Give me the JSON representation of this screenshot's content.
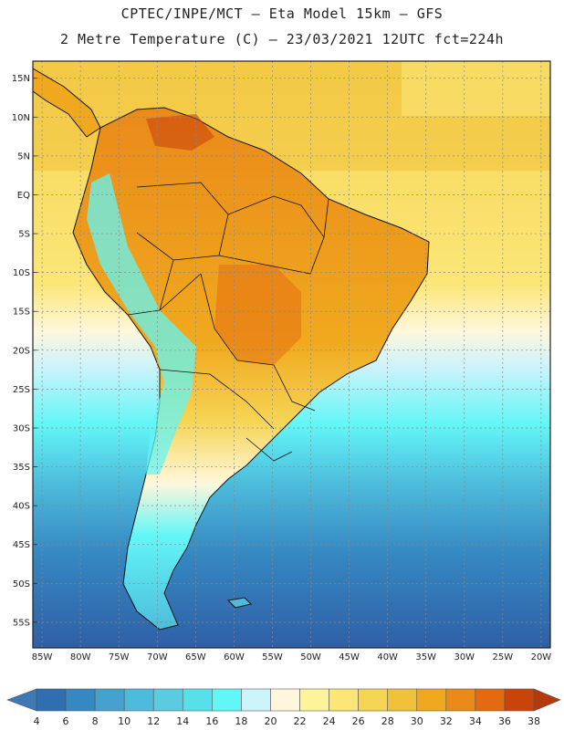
{
  "title_line1": "CPTEC/INPE/MCT –  Eta Model 15km – GFS",
  "title_line2": "2 Metre Temperature (C) – 23/03/2021 12UTC fct=224h",
  "lat_labels": [
    "15N",
    "10N",
    "5N",
    "EQ",
    "5S",
    "10S",
    "15S",
    "20S",
    "25S",
    "30S",
    "35S",
    "40S",
    "45S",
    "50S",
    "55S"
  ],
  "lon_labels": [
    "85W",
    "80W",
    "75W",
    "70W",
    "65W",
    "60W",
    "55W",
    "50W",
    "45W",
    "40W",
    "35W",
    "30W",
    "25W",
    "20W"
  ],
  "colorbar": {
    "labels": [
      "4",
      "6",
      "8",
      "10",
      "12",
      "14",
      "16",
      "18",
      "20",
      "22",
      "24",
      "26",
      "28",
      "30",
      "32",
      "34",
      "36",
      "38"
    ],
    "colors": [
      "#3f78b4",
      "#2f6eb0",
      "#3588c2",
      "#45a2cf",
      "#4dbcdc",
      "#5acbe0",
      "#58e0ea",
      "#62f6f7",
      "#cdf3fb",
      "#fff7dc",
      "#fdf39a",
      "#fbe677",
      "#f6d454",
      "#f0c13a",
      "#f0a91e",
      "#ea8a1a",
      "#e36a10",
      "#c9440b",
      "#b43a0d"
    ]
  }
}
